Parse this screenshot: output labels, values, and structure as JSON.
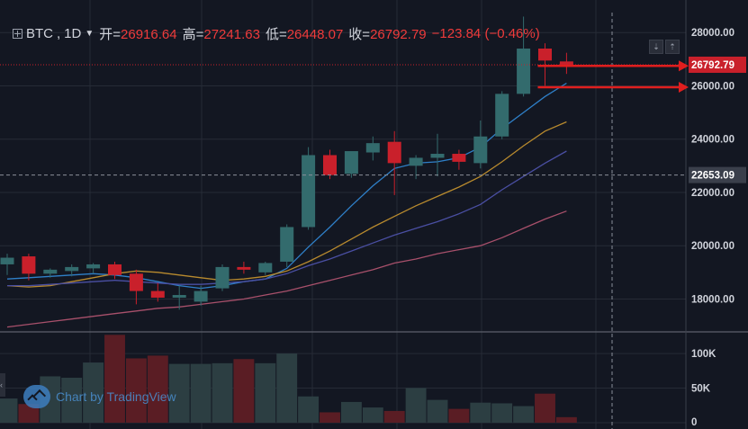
{
  "header": {
    "symbol": "BTC",
    "interval": "1D",
    "open_label": "开=",
    "open": "26916.64",
    "high_label": "高=",
    "high": "27241.63",
    "low_label": "低=",
    "low": "26448.07",
    "close_label": "收=",
    "close": "26792.79",
    "change": "−123.84 (−0.46%)"
  },
  "watermark": "Chart by TradingView",
  "colors": {
    "background": "#131722",
    "up": "#336b6d",
    "down": "#c9202b",
    "ma_fast": "#2f80c9",
    "ma_mid": "#b88a2e",
    "ma_slow": "#4a4fa3",
    "ma_long": "#a8506b",
    "arrow": "#e01e1e"
  },
  "chart_data": {
    "type": "candlestick",
    "price_axis": {
      "ticks": [
        "28000.00",
        "26000.00",
        "24000.00",
        "22000.00",
        "20000.00",
        "18000.00"
      ],
      "range": [
        16800,
        28750
      ]
    },
    "price_labels": [
      {
        "text": "26792.79",
        "value": 26792.79,
        "style": "last-price"
      },
      {
        "text": "22653.09",
        "value": 22653.09,
        "style": "crosshair"
      }
    ],
    "volume_axis": {
      "ticks": [
        "100K",
        "50K",
        "0"
      ],
      "range": [
        0,
        130000
      ]
    },
    "candles": [
      {
        "o": 19300,
        "h": 19700,
        "l": 18900,
        "c": 19550
      },
      {
        "o": 19600,
        "h": 19700,
        "l": 18700,
        "c": 18950
      },
      {
        "o": 18950,
        "h": 19150,
        "l": 18800,
        "c": 19100
      },
      {
        "o": 19050,
        "h": 19300,
        "l": 18850,
        "c": 19200
      },
      {
        "o": 19150,
        "h": 19350,
        "l": 18950,
        "c": 19300
      },
      {
        "o": 19300,
        "h": 19400,
        "l": 18750,
        "c": 18900
      },
      {
        "o": 18950,
        "h": 19100,
        "l": 17800,
        "c": 18300
      },
      {
        "o": 18300,
        "h": 18600,
        "l": 17900,
        "c": 18050
      },
      {
        "o": 18050,
        "h": 18500,
        "l": 17600,
        "c": 18150
      },
      {
        "o": 17900,
        "h": 18500,
        "l": 17750,
        "c": 18300
      },
      {
        "o": 18400,
        "h": 19300,
        "l": 18300,
        "c": 19200
      },
      {
        "o": 19200,
        "h": 19400,
        "l": 18950,
        "c": 19100
      },
      {
        "o": 19000,
        "h": 19400,
        "l": 18900,
        "c": 19350
      },
      {
        "o": 19400,
        "h": 20800,
        "l": 19200,
        "c": 20700
      },
      {
        "o": 20700,
        "h": 23700,
        "l": 20600,
        "c": 23400
      },
      {
        "o": 23400,
        "h": 23600,
        "l": 22500,
        "c": 22650
      },
      {
        "o": 22700,
        "h": 23500,
        "l": 22550,
        "c": 23550
      },
      {
        "o": 23500,
        "h": 24100,
        "l": 23200,
        "c": 23850
      },
      {
        "o": 23900,
        "h": 24300,
        "l": 21900,
        "c": 23100
      },
      {
        "o": 23000,
        "h": 23400,
        "l": 22500,
        "c": 23300
      },
      {
        "o": 23300,
        "h": 24200,
        "l": 22600,
        "c": 23450
      },
      {
        "o": 23450,
        "h": 23600,
        "l": 22850,
        "c": 23150
      },
      {
        "o": 23100,
        "h": 24700,
        "l": 22900,
        "c": 24100
      },
      {
        "o": 24100,
        "h": 25800,
        "l": 24000,
        "c": 25700
      },
      {
        "o": 25700,
        "h": 28600,
        "l": 25600,
        "c": 27400
      },
      {
        "o": 27400,
        "h": 27600,
        "l": 26000,
        "c": 26950
      },
      {
        "o": 26916.64,
        "h": 27241.63,
        "l": 26448.07,
        "c": 26792.79
      }
    ],
    "volumes": [
      35000,
      27000,
      67000,
      65000,
      87000,
      127000,
      93000,
      97000,
      85000,
      85000,
      86000,
      92000,
      86000,
      100000,
      38000,
      15000,
      30000,
      22000,
      17000,
      50000,
      33000,
      20000,
      29000,
      28000,
      24000,
      42000,
      8000
    ],
    "moving_averages": [
      {
        "color": "#2f80c9",
        "values": [
          18750,
          18800,
          18850,
          18900,
          18950,
          18900,
          18800,
          18650,
          18500,
          18400,
          18500,
          18650,
          18750,
          19150,
          19950,
          20700,
          21500,
          22250,
          22900,
          23100,
          23150,
          23300,
          23700,
          24400,
          25000,
          25600,
          26100
        ]
      },
      {
        "color": "#b88a2e",
        "values": [
          18500,
          18450,
          18500,
          18650,
          18800,
          18950,
          19050,
          19000,
          18900,
          18800,
          18700,
          18750,
          18850,
          19050,
          19400,
          19800,
          20250,
          20700,
          21100,
          21500,
          21850,
          22200,
          22600,
          23150,
          23750,
          24300,
          24650
        ]
      },
      {
        "color": "#4a4fa3",
        "values": [
          18500,
          18500,
          18550,
          18600,
          18650,
          18700,
          18650,
          18600,
          18550,
          18550,
          18600,
          18650,
          18750,
          18950,
          19250,
          19500,
          19800,
          20100,
          20400,
          20650,
          20900,
          21200,
          21550,
          22100,
          22600,
          23100,
          23550
        ]
      },
      {
        "color": "#a8506b",
        "values": [
          16950,
          17050,
          17150,
          17250,
          17350,
          17450,
          17550,
          17650,
          17700,
          17800,
          17900,
          18000,
          18150,
          18300,
          18500,
          18700,
          18900,
          19100,
          19350,
          19500,
          19700,
          19850,
          20000,
          20300,
          20650,
          21000,
          21300
        ]
      }
    ],
    "annotations": [
      {
        "type": "arrow",
        "from_candle": 25,
        "to": "price_axis",
        "value": 26750
      },
      {
        "type": "arrow",
        "from_candle": 25,
        "to": "price_axis",
        "value": 25950
      }
    ]
  }
}
